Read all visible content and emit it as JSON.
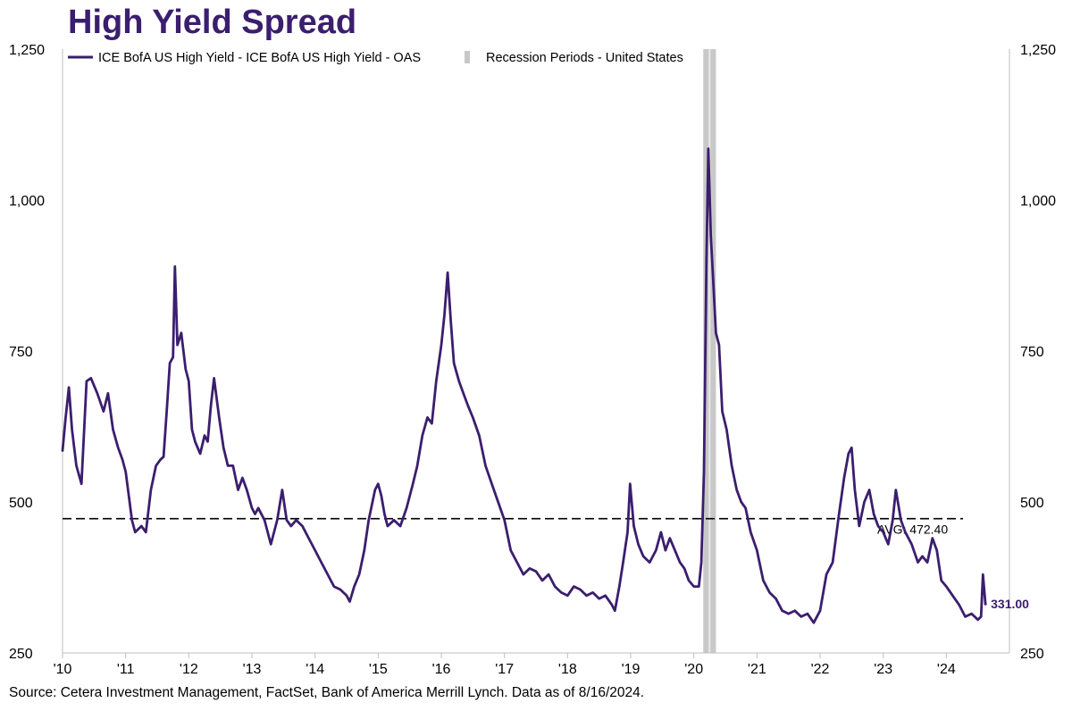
{
  "chart_data": {
    "type": "line",
    "title": "High Yield Spread",
    "source": "Source: Cetera Investment Management, FactSet, Bank of America Merrill Lynch. Data as of 8/16/2024.",
    "ylim": [
      250,
      1250
    ],
    "yticks": [
      250,
      500,
      750,
      1000,
      1250
    ],
    "ytick_labels": [
      "250",
      "500",
      "750",
      "1,000",
      "1,250"
    ],
    "xlim": [
      2010.0,
      2025.0
    ],
    "xticks": [
      2010,
      2011,
      2012,
      2013,
      2014,
      2015,
      2016,
      2017,
      2018,
      2019,
      2020,
      2021,
      2022,
      2023,
      2024
    ],
    "xtick_labels": [
      "'10",
      "'11",
      "'12",
      "'13",
      "'14",
      "'15",
      "'16",
      "'17",
      "'18",
      "'19",
      "'20",
      "'21",
      "'22",
      "'23",
      "'24"
    ],
    "legend": {
      "placement": "top-left",
      "entries": [
        "ICE BofA US High Yield - ICE BofA US High Yield - OAS",
        "Recession Periods - United States"
      ]
    },
    "series": [
      {
        "name": "ICE BofA US High Yield - ICE BofA US High Yield - OAS",
        "color": "#3b1e6e",
        "points": [
          [
            2010.0,
            585
          ],
          [
            2010.05,
            640
          ],
          [
            2010.1,
            690
          ],
          [
            2010.15,
            620
          ],
          [
            2010.22,
            560
          ],
          [
            2010.3,
            530
          ],
          [
            2010.38,
            700
          ],
          [
            2010.45,
            705
          ],
          [
            2010.55,
            680
          ],
          [
            2010.65,
            650
          ],
          [
            2010.72,
            680
          ],
          [
            2010.8,
            620
          ],
          [
            2010.88,
            590
          ],
          [
            2010.95,
            570
          ],
          [
            2011.0,
            550
          ],
          [
            2011.05,
            510
          ],
          [
            2011.1,
            470
          ],
          [
            2011.15,
            450
          ],
          [
            2011.25,
            460
          ],
          [
            2011.32,
            450
          ],
          [
            2011.4,
            520
          ],
          [
            2011.48,
            560
          ],
          [
            2011.55,
            570
          ],
          [
            2011.6,
            575
          ],
          [
            2011.65,
            650
          ],
          [
            2011.7,
            730
          ],
          [
            2011.75,
            740
          ],
          [
            2011.78,
            890
          ],
          [
            2011.82,
            760
          ],
          [
            2011.88,
            780
          ],
          [
            2011.95,
            720
          ],
          [
            2012.0,
            700
          ],
          [
            2012.05,
            620
          ],
          [
            2012.1,
            600
          ],
          [
            2012.18,
            580
          ],
          [
            2012.25,
            610
          ],
          [
            2012.3,
            600
          ],
          [
            2012.35,
            660
          ],
          [
            2012.4,
            705
          ],
          [
            2012.48,
            640
          ],
          [
            2012.55,
            590
          ],
          [
            2012.62,
            560
          ],
          [
            2012.7,
            560
          ],
          [
            2012.78,
            520
          ],
          [
            2012.85,
            540
          ],
          [
            2012.92,
            520
          ],
          [
            2013.0,
            490
          ],
          [
            2013.05,
            480
          ],
          [
            2013.1,
            490
          ],
          [
            2013.2,
            470
          ],
          [
            2013.3,
            430
          ],
          [
            2013.4,
            470
          ],
          [
            2013.48,
            520
          ],
          [
            2013.55,
            470
          ],
          [
            2013.62,
            460
          ],
          [
            2013.7,
            470
          ],
          [
            2013.8,
            460
          ],
          [
            2013.9,
            440
          ],
          [
            2014.0,
            420
          ],
          [
            2014.1,
            400
          ],
          [
            2014.2,
            380
          ],
          [
            2014.3,
            360
          ],
          [
            2014.4,
            355
          ],
          [
            2014.5,
            345
          ],
          [
            2014.55,
            335
          ],
          [
            2014.62,
            360
          ],
          [
            2014.7,
            380
          ],
          [
            2014.78,
            420
          ],
          [
            2014.85,
            470
          ],
          [
            2014.95,
            520
          ],
          [
            2015.0,
            530
          ],
          [
            2015.05,
            510
          ],
          [
            2015.1,
            480
          ],
          [
            2015.15,
            460
          ],
          [
            2015.25,
            470
          ],
          [
            2015.35,
            460
          ],
          [
            2015.45,
            490
          ],
          [
            2015.55,
            530
          ],
          [
            2015.62,
            560
          ],
          [
            2015.7,
            610
          ],
          [
            2015.78,
            640
          ],
          [
            2015.85,
            630
          ],
          [
            2015.92,
            700
          ],
          [
            2016.0,
            760
          ],
          [
            2016.05,
            810
          ],
          [
            2016.1,
            880
          ],
          [
            2016.15,
            800
          ],
          [
            2016.2,
            730
          ],
          [
            2016.28,
            700
          ],
          [
            2016.35,
            680
          ],
          [
            2016.42,
            660
          ],
          [
            2016.5,
            640
          ],
          [
            2016.6,
            610
          ],
          [
            2016.7,
            560
          ],
          [
            2016.8,
            530
          ],
          [
            2016.9,
            500
          ],
          [
            2017.0,
            470
          ],
          [
            2017.1,
            420
          ],
          [
            2017.2,
            400
          ],
          [
            2017.3,
            380
          ],
          [
            2017.4,
            390
          ],
          [
            2017.5,
            385
          ],
          [
            2017.6,
            370
          ],
          [
            2017.7,
            380
          ],
          [
            2017.8,
            360
          ],
          [
            2017.9,
            350
          ],
          [
            2018.0,
            345
          ],
          [
            2018.1,
            360
          ],
          [
            2018.2,
            355
          ],
          [
            2018.3,
            345
          ],
          [
            2018.4,
            350
          ],
          [
            2018.5,
            340
          ],
          [
            2018.6,
            345
          ],
          [
            2018.7,
            330
          ],
          [
            2018.75,
            320
          ],
          [
            2018.82,
            360
          ],
          [
            2018.88,
            400
          ],
          [
            2018.95,
            450
          ],
          [
            2018.99,
            530
          ],
          [
            2019.05,
            460
          ],
          [
            2019.12,
            430
          ],
          [
            2019.2,
            410
          ],
          [
            2019.3,
            400
          ],
          [
            2019.4,
            420
          ],
          [
            2019.48,
            450
          ],
          [
            2019.55,
            420
          ],
          [
            2019.62,
            440
          ],
          [
            2019.7,
            420
          ],
          [
            2019.78,
            400
          ],
          [
            2019.85,
            390
          ],
          [
            2019.92,
            370
          ],
          [
            2020.0,
            360
          ],
          [
            2020.08,
            360
          ],
          [
            2020.12,
            400
          ],
          [
            2020.16,
            550
          ],
          [
            2020.2,
            900
          ],
          [
            2020.23,
            1085
          ],
          [
            2020.27,
            940
          ],
          [
            2020.3,
            880
          ],
          [
            2020.35,
            780
          ],
          [
            2020.4,
            760
          ],
          [
            2020.45,
            650
          ],
          [
            2020.52,
            620
          ],
          [
            2020.6,
            560
          ],
          [
            2020.68,
            520
          ],
          [
            2020.75,
            500
          ],
          [
            2020.82,
            490
          ],
          [
            2020.9,
            450
          ],
          [
            2021.0,
            420
          ],
          [
            2021.1,
            370
          ],
          [
            2021.2,
            350
          ],
          [
            2021.3,
            340
          ],
          [
            2021.4,
            320
          ],
          [
            2021.5,
            315
          ],
          [
            2021.6,
            320
          ],
          [
            2021.7,
            310
          ],
          [
            2021.8,
            315
          ],
          [
            2021.9,
            300
          ],
          [
            2022.0,
            320
          ],
          [
            2022.1,
            380
          ],
          [
            2022.2,
            400
          ],
          [
            2022.3,
            480
          ],
          [
            2022.38,
            540
          ],
          [
            2022.45,
            580
          ],
          [
            2022.5,
            590
          ],
          [
            2022.55,
            520
          ],
          [
            2022.62,
            460
          ],
          [
            2022.7,
            500
          ],
          [
            2022.78,
            520
          ],
          [
            2022.85,
            480
          ],
          [
            2022.92,
            460
          ],
          [
            2023.0,
            450
          ],
          [
            2023.08,
            430
          ],
          [
            2023.15,
            470
          ],
          [
            2023.2,
            520
          ],
          [
            2023.28,
            470
          ],
          [
            2023.35,
            450
          ],
          [
            2023.45,
            430
          ],
          [
            2023.55,
            400
          ],
          [
            2023.62,
            410
          ],
          [
            2023.7,
            400
          ],
          [
            2023.78,
            440
          ],
          [
            2023.85,
            420
          ],
          [
            2023.92,
            370
          ],
          [
            2024.0,
            360
          ],
          [
            2024.1,
            345
          ],
          [
            2024.2,
            330
          ],
          [
            2024.3,
            310
          ],
          [
            2024.4,
            315
          ],
          [
            2024.5,
            305
          ],
          [
            2024.55,
            310
          ],
          [
            2024.58,
            380
          ],
          [
            2024.62,
            331
          ]
        ]
      }
    ],
    "recession_periods": [
      [
        2020.15,
        2020.35
      ]
    ],
    "recession_color": "#c8c8c8",
    "average": {
      "value": 472.4,
      "label": "AVG: 472.40"
    },
    "last_value": {
      "value": 331.0,
      "label": "331.00"
    }
  }
}
